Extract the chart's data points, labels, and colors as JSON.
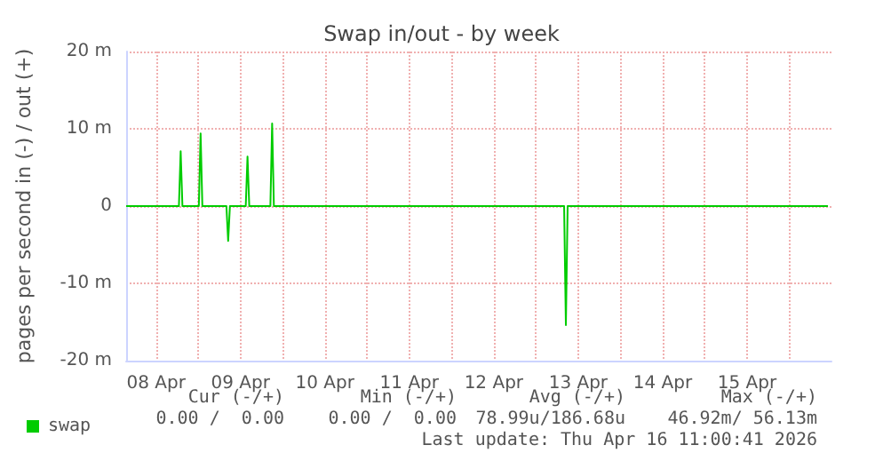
{
  "chart_data": {
    "type": "line",
    "title": "Swap in/out - by week",
    "ylabel": "pages per second in (-) / out (+)",
    "x": [
      "2026-04-08T03:30",
      "2026-04-08T18:30",
      "2026-04-08T19:00",
      "2026-04-08T19:30",
      "2026-04-09T00:10",
      "2026-04-09T00:40",
      "2026-04-09T01:10",
      "2026-04-09T08:00",
      "2026-04-09T08:30",
      "2026-04-09T09:00",
      "2026-04-09T13:30",
      "2026-04-09T14:00",
      "2026-04-09T14:30",
      "2026-04-09T20:30",
      "2026-04-09T21:00",
      "2026-04-09T21:30",
      "2026-04-13T08:00",
      "2026-04-13T08:30",
      "2026-04-13T09:00",
      "2026-04-16T11:00"
    ],
    "series": [
      {
        "name": "swap",
        "color": "#00cc00",
        "values": [
          0,
          0,
          7.1,
          0,
          0,
          9.4,
          0,
          0,
          -4.5,
          0,
          0,
          6.4,
          0,
          0,
          10.7,
          0,
          0,
          -15.4,
          0,
          0
        ]
      }
    ],
    "xlim": [
      "2026-04-08T03:30",
      "2026-04-16T12:00"
    ],
    "xticks": [
      {
        "value": "2026-04-08T12:00",
        "label": "08 Apr"
      },
      {
        "value": "2026-04-09T00:00",
        "label": null
      },
      {
        "value": "2026-04-09T12:00",
        "label": "09 Apr"
      },
      {
        "value": "2026-04-10T00:00",
        "label": null
      },
      {
        "value": "2026-04-10T12:00",
        "label": "10 Apr"
      },
      {
        "value": "2026-04-11T00:00",
        "label": null
      },
      {
        "value": "2026-04-11T12:00",
        "label": "11 Apr"
      },
      {
        "value": "2026-04-12T00:00",
        "label": null
      },
      {
        "value": "2026-04-12T12:00",
        "label": "12 Apr"
      },
      {
        "value": "2026-04-13T00:00",
        "label": null
      },
      {
        "value": "2026-04-13T12:00",
        "label": "13 Apr"
      },
      {
        "value": "2026-04-14T00:00",
        "label": null
      },
      {
        "value": "2026-04-14T12:00",
        "label": "14 Apr"
      },
      {
        "value": "2026-04-15T00:00",
        "label": null
      },
      {
        "value": "2026-04-15T12:00",
        "label": "15 Apr"
      },
      {
        "value": "2026-04-16T00:00",
        "label": null
      }
    ],
    "ylim": [
      -20,
      20
    ],
    "yticks": [
      {
        "value": -20,
        "label": "-20 m"
      },
      {
        "value": -10,
        "label": "-10 m"
      },
      {
        "value": 0,
        "label": "0"
      },
      {
        "value": 10,
        "label": "10 m"
      },
      {
        "value": 20,
        "label": "20 m"
      }
    ],
    "grid": true,
    "legend": "bottom left",
    "marker": "none",
    "line_style": "solid",
    "annotations": [
      "Cur (-/+)",
      "Min (-/+)",
      "Avg (-/+)",
      "Max (-/+)",
      "0.00 /  0.00",
      "0.00 /  0.00",
      "78.99u/186.68u",
      "46.92m/ 56.13m",
      "Last update: Thu Apr 16 11:00:41 2026"
    ]
  }
}
